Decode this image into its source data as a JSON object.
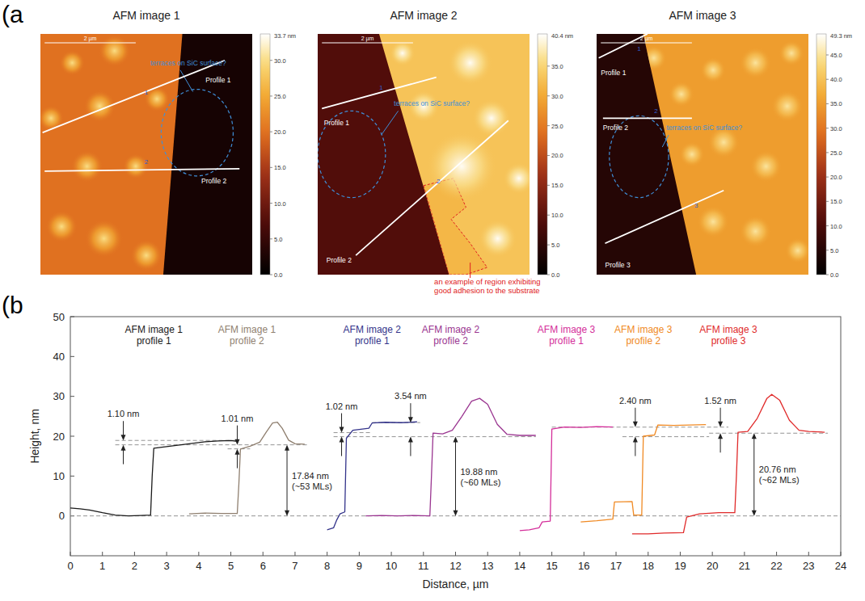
{
  "panel_labels": [
    "(a",
    "(b"
  ],
  "afm_images": [
    {
      "title": "AFM image 1",
      "scale_bar": "2 µm",
      "height_levels": {
        "substrate": 2,
        "film": 20,
        "bumps": 30
      },
      "colorbar": {
        "range": [
          0,
          33.7
        ],
        "max_label": "33.7 nm",
        "ticks": [
          {
            "value": 0,
            "label": "0.0"
          },
          {
            "value": 5,
            "label": "5.0"
          },
          {
            "value": 10,
            "label": "10.0"
          },
          {
            "value": 15,
            "label": "15.0"
          },
          {
            "value": 20,
            "label": "20.0"
          },
          {
            "value": 25,
            "label": "25.0"
          },
          {
            "value": 30,
            "label": "30.0"
          }
        ]
      },
      "profiles": [
        {
          "label": "Profile 1",
          "marker": "1"
        },
        {
          "label": "Profile 2",
          "marker": "2"
        }
      ],
      "annotations": [
        "terraces on SiC surface?"
      ]
    },
    {
      "title": "AFM image 2",
      "scale_bar": "2 µm",
      "height_levels": {
        "substrate": 9,
        "film": 33,
        "bumps": 40,
        "adhesion": 31
      },
      "colorbar": {
        "range": [
          0,
          40.4
        ],
        "max_label": "40.4 nm",
        "ticks": [
          {
            "value": 0,
            "label": "0.0"
          },
          {
            "value": 5,
            "label": "5.0"
          },
          {
            "value": 10,
            "label": "10.0"
          },
          {
            "value": 15,
            "label": "15.0"
          },
          {
            "value": 20,
            "label": "20.0"
          },
          {
            "value": 25,
            "label": "25.0"
          },
          {
            "value": 30,
            "label": "30.0"
          },
          {
            "value": 35,
            "label": "35.0"
          }
        ]
      },
      "profiles": [
        {
          "label": "Profile 1",
          "marker": "1"
        },
        {
          "label": "Profile 2",
          "marker": "2"
        }
      ],
      "annotations": [
        "terraces on SiC surface?",
        "an example of region exhibiting good adhesion to the substrate"
      ]
    },
    {
      "title": "AFM image 3",
      "scale_bar": "2 µm",
      "height_levels": {
        "substrate": 5,
        "film": 35,
        "bumps": 45
      },
      "colorbar": {
        "range": [
          0,
          49.3
        ],
        "max_label": "49.3 nm",
        "ticks": [
          {
            "value": 0,
            "label": "0.0"
          },
          {
            "value": 5,
            "label": "5.0"
          },
          {
            "value": 10,
            "label": "10.0"
          },
          {
            "value": 15,
            "label": "15.0"
          },
          {
            "value": 20,
            "label": "20.0"
          },
          {
            "value": 25,
            "label": "25.0"
          },
          {
            "value": 30,
            "label": "30.0"
          },
          {
            "value": 35,
            "label": "35.0"
          },
          {
            "value": 40,
            "label": "40.0"
          },
          {
            "value": 45,
            "label": "45.0"
          }
        ]
      },
      "profiles": [
        {
          "label": "Profile 1",
          "marker": "1"
        },
        {
          "label": "Profile 2",
          "marker": "2"
        },
        {
          "label": "Profile 3",
          "marker": "3"
        }
      ],
      "annotations": [
        "terraces on SiC surface?"
      ]
    }
  ],
  "chart_data": {
    "type": "line",
    "x_label": "Distance, µm",
    "y_label": "Height, nm",
    "xlim": [
      0,
      24
    ],
    "xticks": [
      0,
      1,
      2,
      3,
      4,
      5,
      6,
      7,
      8,
      9,
      10,
      11,
      12,
      13,
      14,
      15,
      16,
      17,
      18,
      19,
      20,
      21,
      22,
      23,
      24
    ],
    "ylim": [
      -10,
      50
    ],
    "yticks": [
      0,
      10,
      20,
      30,
      40,
      50
    ],
    "grid": false,
    "series": [
      {
        "name": "AFM image 1\nprofile 1",
        "color": "#1a1a1a",
        "x": [
          0,
          0.3,
          0.6,
          1.0,
          1.4,
          1.8,
          2.2,
          2.5,
          2.55,
          2.6,
          3.0,
          3.4,
          3.8,
          4.2,
          4.6,
          5.0,
          5.2
        ],
        "values": [
          2,
          1.8,
          1.5,
          0.8,
          0.2,
          0,
          0.1,
          0.2,
          10,
          17,
          17.4,
          17.8,
          18.2,
          18.6,
          18.8,
          18.9,
          18.7
        ]
      },
      {
        "name": "AFM image 1\nprofile 2",
        "color": "#8f7f6f",
        "x": [
          3.7,
          4.2,
          4.7,
          5.2,
          5.25,
          5.3,
          5.6,
          5.9,
          6.1,
          6.3,
          6.45,
          6.6,
          6.8,
          7.0,
          7.3
        ],
        "values": [
          0.5,
          0.7,
          0.6,
          0.6,
          8,
          16.8,
          17.5,
          18.5,
          21,
          23.3,
          23.5,
          22,
          19,
          18.1,
          18
        ]
      },
      {
        "name": "AFM image 2\nprofile 1",
        "color": "#33338a",
        "x": [
          8.0,
          8.2,
          8.3,
          8.4,
          8.55,
          8.6,
          8.8,
          9.1,
          9.3,
          9.4,
          9.8,
          10.3,
          10.8
        ],
        "values": [
          -3.5,
          -3,
          -1,
          0.5,
          1,
          19.5,
          21.5,
          21.8,
          22,
          23.3,
          23.5,
          23.4,
          23.6
        ]
      },
      {
        "name": "AFM image 2\nprofile 2",
        "color": "#9a3590",
        "x": [
          9.2,
          9.7,
          10.2,
          10.7,
          11.2,
          11.25,
          11.3,
          11.6,
          11.9,
          12.2,
          12.5,
          12.75,
          13.0,
          13.3,
          13.6,
          14.0,
          14.5
        ],
        "values": [
          0,
          0.1,
          0,
          0.1,
          0,
          10,
          20.8,
          20.6,
          21.5,
          25,
          28.8,
          29.5,
          28,
          23,
          20.5,
          20.2,
          20.2
        ]
      },
      {
        "name": "AFM image 3\nprofile 1",
        "color": "#d42e9a",
        "x": [
          14.0,
          14.3,
          14.6,
          14.7,
          14.95,
          15.0,
          15.4,
          15.9,
          16.4,
          16.9
        ],
        "values": [
          -3.7,
          -3.5,
          -3,
          -1.5,
          -1.3,
          21.8,
          22.3,
          22.2,
          22.4,
          22.3
        ]
      },
      {
        "name": "AFM image 3\nprofile 2",
        "color": "#f08a24",
        "x": [
          15.9,
          16.4,
          16.9,
          16.95,
          17.5,
          17.55,
          17.8,
          17.85,
          18.2,
          18.3,
          18.8,
          19.3,
          19.8
        ],
        "values": [
          -1.5,
          -1.2,
          -0.8,
          3.5,
          3.6,
          0.2,
          0.2,
          20,
          20.3,
          22.8,
          22.7,
          22.8,
          22.9
        ]
      },
      {
        "name": "AFM image 3\nprofile 3",
        "color": "#e02a2a",
        "x": [
          17.5,
          18.0,
          18.5,
          19.1,
          19.2,
          19.6,
          20.2,
          20.7,
          20.75,
          20.8,
          21.1,
          21.4,
          21.7,
          21.85,
          22.1,
          22.4,
          22.7,
          23.0,
          23.5
        ],
        "values": [
          -4.5,
          -4.5,
          -4.3,
          -4.2,
          -0.3,
          0.5,
          0.8,
          0.8,
          10,
          21,
          21.2,
          24.5,
          29.5,
          30.5,
          29,
          24,
          21.5,
          21.2,
          21
        ]
      }
    ],
    "annotations": {
      "reference_lines": [
        {
          "y": 0,
          "x": [
            0,
            24
          ]
        },
        {
          "y": 17.84,
          "x": [
            1.4,
            7.4
          ]
        },
        {
          "y": 18.94,
          "x": [
            1.4,
            5.2
          ]
        },
        {
          "y": 16.83,
          "x": [
            4.9,
            5.6
          ]
        },
        {
          "y": 19.88,
          "x": [
            8.2,
            14.5
          ]
        },
        {
          "y": 20.9,
          "x": [
            8.2,
            9.4
          ]
        },
        {
          "y": 23.42,
          "x": [
            9.4,
            10.9
          ]
        },
        {
          "y": 22.28,
          "x": [
            15.0,
            20.5
          ]
        },
        {
          "y": 19.88,
          "x": [
            17.2,
            19.9
          ]
        },
        {
          "y": 20.76,
          "x": [
            19.9,
            23.6
          ]
        }
      ],
      "steps": [
        {
          "label": "1.10 nm",
          "x": 1.65,
          "from": 17.84,
          "to": 18.94
        },
        {
          "label": "1.01 nm",
          "x": 5.2,
          "from": 16.83,
          "to": 17.84
        },
        {
          "label": "1.02 nm",
          "x": 8.45,
          "from": 19.88,
          "to": 20.9
        },
        {
          "label": "3.54 nm",
          "x": 10.6,
          "from": 19.88,
          "to": 23.42
        },
        {
          "label": "2.40 nm",
          "x": 17.6,
          "from": 19.88,
          "to": 22.28
        },
        {
          "label": "1.52 nm",
          "x": 20.25,
          "from": 20.76,
          "to": 22.28
        }
      ],
      "thicknesses": [
        {
          "label": "17.84 nm",
          "note": "(~53 MLs)",
          "x": 6.75,
          "from": 0,
          "to": 17.84
        },
        {
          "label": "19.88 nm",
          "note": "(~60 MLs)",
          "x": 12.0,
          "from": 0,
          "to": 19.88
        },
        {
          "label": "20.76 nm",
          "note": "(~62 MLs)",
          "x": 21.3,
          "from": 0,
          "to": 20.76
        }
      ]
    }
  }
}
